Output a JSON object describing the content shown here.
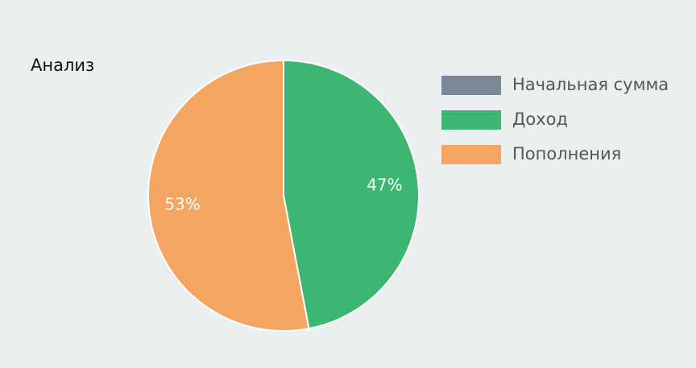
{
  "chart_data": {
    "type": "pie",
    "title": "Анализ",
    "categories": [
      "Начальная сумма",
      "Доход",
      "Пополнения"
    ],
    "values": [
      0,
      47,
      53
    ],
    "value_labels": [
      null,
      "47%",
      "53%"
    ],
    "colors": [
      "#7a8898",
      "#3db573",
      "#f4a562"
    ]
  }
}
